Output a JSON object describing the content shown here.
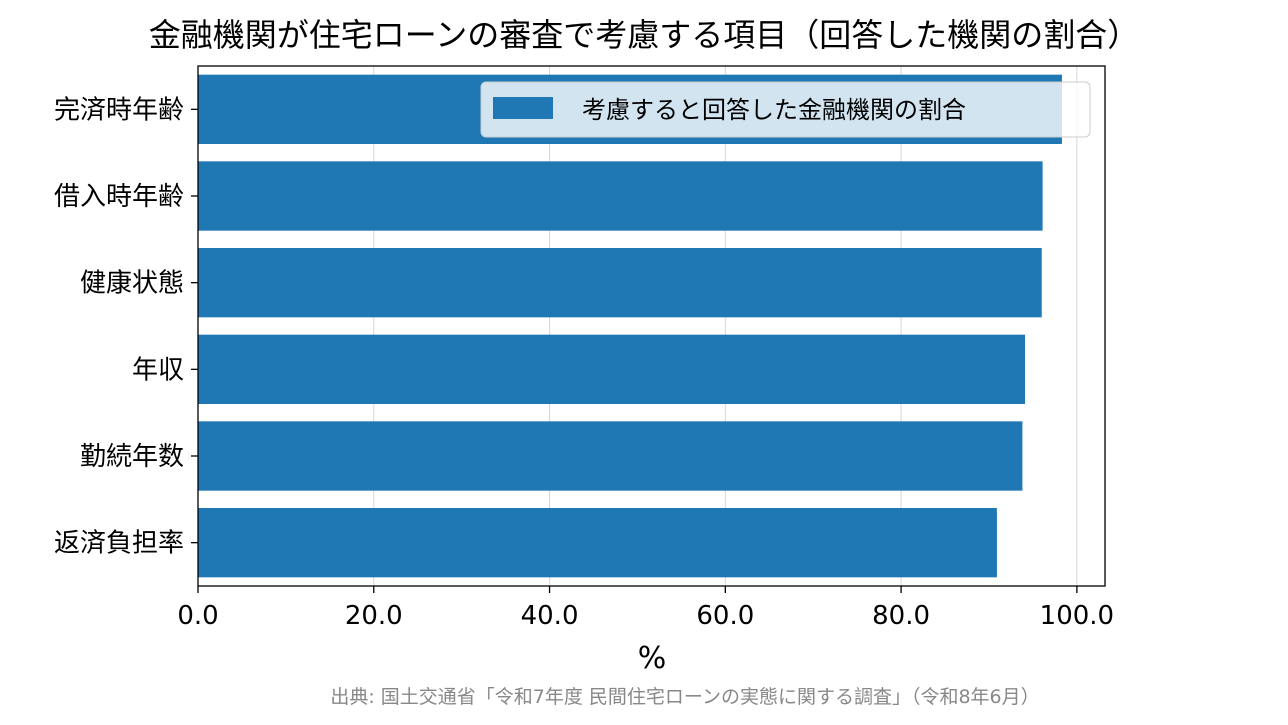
{
  "chart_data": {
    "type": "bar",
    "orientation": "horizontal",
    "title": "金融機関が住宅ローンの審査で考慮する項目（回答した機関の割合）",
    "xlabel": "%",
    "ylabel": "",
    "categories": [
      "完済時年齢",
      "借入時年齢",
      "健康状態",
      "年収",
      "勤続年数",
      "返済負担率"
    ],
    "series": [
      {
        "name": "考慮すると回答した金融機関の割合",
        "values": [
          98.3,
          96.1,
          96.0,
          94.1,
          93.8,
          90.9
        ]
      }
    ],
    "xlim": [
      0,
      103.2
    ],
    "x_ticks": [
      "0.0",
      "20.0",
      "40.0",
      "60.0",
      "80.0",
      "100.0"
    ],
    "x_tick_values": [
      0,
      20,
      40,
      60,
      80,
      100
    ],
    "grid": "x-axis vertical lines",
    "legend_position": "top-right",
    "bar_color": "#1f77b4",
    "source_note": "出典: 国土交通省「令和7年度 民間住宅ローンの実態に関する調査」（令和8年6月）"
  }
}
